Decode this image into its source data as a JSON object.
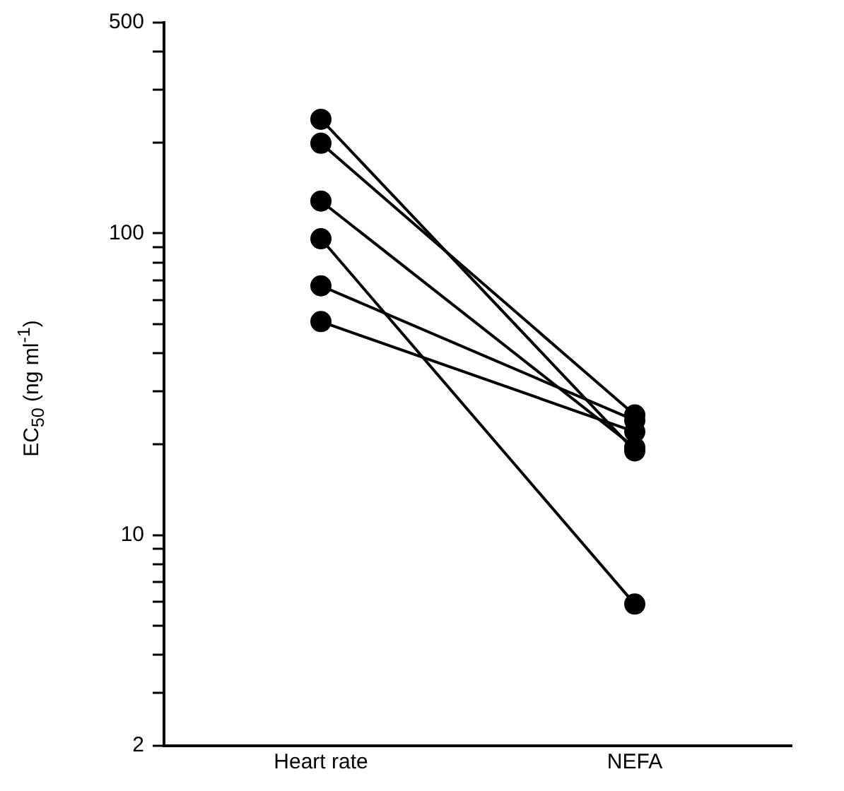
{
  "chart_data": {
    "type": "line",
    "ylabel": "EC$_{50}$ (ng ml$^{-1}$)",
    "categories": [
      "Heart rate",
      "NEFA"
    ],
    "series": [
      {
        "color": "#000000",
        "values": [
          51,
          22
        ]
      },
      {
        "color": "#000000",
        "values": [
          239,
          19
        ]
      },
      {
        "color": "#000000",
        "values": [
          199,
          25
        ]
      },
      {
        "color": "#000000",
        "values": [
          128,
          19.5
        ]
      },
      {
        "color": "#000000",
        "values": [
          96,
          5.9
        ]
      },
      {
        "color": "#000000",
        "values": [
          67,
          24
        ]
      }
    ],
    "log": true,
    "ylim": [
      2,
      500
    ],
    "yticks": [
      2,
      {
        "value": 3,
        "label": null
      },
      {
        "value": 4,
        "label": null
      },
      {
        "value": 5,
        "label": null
      },
      {
        "value": 6,
        "label": null
      },
      {
        "value": 7,
        "label": null
      },
      {
        "value": 8,
        "label": null
      },
      {
        "value": 9,
        "label": null
      },
      10,
      {
        "value": 20,
        "label": null
      },
      {
        "value": 30,
        "label": null
      },
      {
        "value": 40,
        "label": null
      },
      {
        "value": 50,
        "label": null
      },
      {
        "value": 60,
        "label": null
      },
      {
        "value": 70,
        "label": null
      },
      {
        "value": 80,
        "label": null
      },
      {
        "value": 90,
        "label": null
      },
      100,
      {
        "value": 200,
        "label": null
      },
      {
        "value": 300,
        "label": null
      },
      {
        "value": 400,
        "label": null
      },
      500
    ],
    "marker": "circle",
    "line_style": "solid",
    "grid": false,
    "legend": false
  }
}
